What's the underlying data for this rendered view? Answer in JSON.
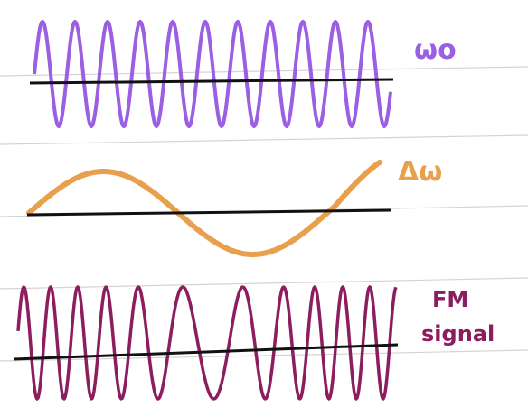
{
  "labels": {
    "carrier": "ωo",
    "modulating": "Δω",
    "fm_line1": "FM",
    "fm_line2": "signal"
  }
}
